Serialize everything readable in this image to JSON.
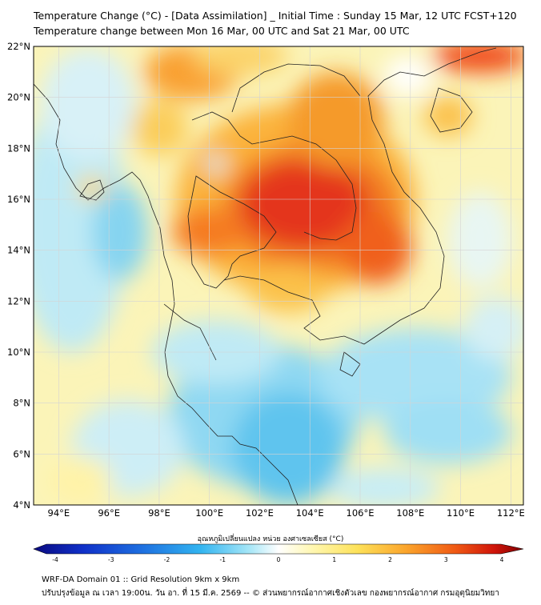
{
  "header": {
    "title_line1": "Temperature Change (°C) - [Data Assimilation] _ Initial Time : Sunday 15 Mar, 12 UTC FCST+120",
    "title_line2": "Temperature change between Mon 16 Mar, 00 UTC and Sat 21 Mar, 00 UTC"
  },
  "map": {
    "lat_labels": [
      "22°N",
      "20°N",
      "18°N",
      "16°N",
      "14°N",
      "12°N",
      "10°N",
      "8°N",
      "6°N",
      "4°N"
    ],
    "lon_labels": [
      "94°E",
      "96°E",
      "98°E",
      "100°E",
      "102°E",
      "104°E",
      "106°E",
      "108°E",
      "110°E",
      "112°E"
    ]
  },
  "colorbar": {
    "label": "อุณหภูมิเปลี่ยนแปลง หน่วย องศาเซลเซียส (°C)",
    "ticks": [
      "-4",
      "-3",
      "-2",
      "-1",
      "0",
      "1",
      "2",
      "3",
      "4"
    ],
    "colors": [
      "#0a0a80",
      "#1030c8",
      "#1e6fe0",
      "#32b4f0",
      "#8fe0f5",
      "#ffffff",
      "#fff7b0",
      "#fde25a",
      "#fba52c",
      "#f05a14",
      "#d0150a",
      "#800000"
    ]
  },
  "footer": {
    "line1": "WRF-DA Domain 01 :: Grid Resolution 9km x 9km",
    "line2": "ปรับปรุงข้อมูล ณ เวลา 19:00น. วัน อา. ที่ 15 มี.ค. 2569 -- © ส่วนพยากรณ์อากาศเชิงตัวเลข กองพยากรณ์อากาศ กรมอุตุนิยมวิทยา"
  }
}
